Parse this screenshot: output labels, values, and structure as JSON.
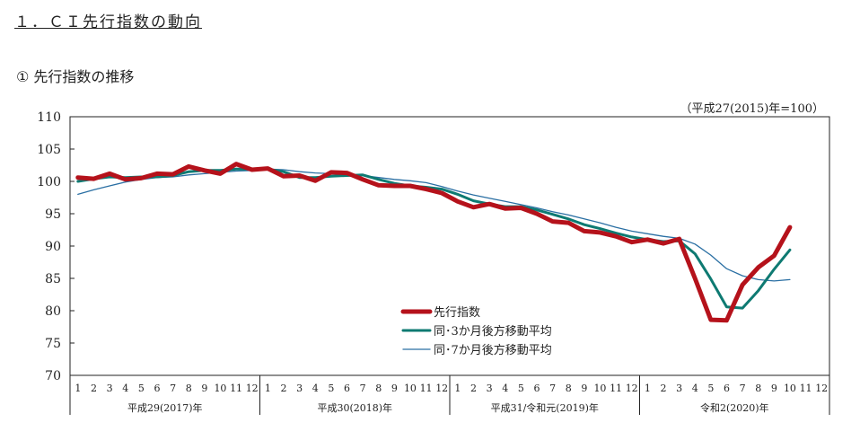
{
  "page": {
    "section_title": "１．ＣＩ先行指数の動向",
    "sub_title": "①  先行指数の推移",
    "base_note": "（平成27(2015)年=100）"
  },
  "chart_data": {
    "type": "line",
    "y_ticks": [
      "110",
      "105",
      "100",
      "95",
      "90",
      "85",
      "80",
      "75",
      "70"
    ],
    "ylim": [
      70,
      110
    ],
    "month_labels": [
      "1",
      "2",
      "3",
      "4",
      "5",
      "6",
      "7",
      "8",
      "9",
      "10",
      "11",
      "12"
    ],
    "year_labels": [
      "平成29(2017)年",
      "平成30(2018)年",
      "平成31/令和元(2019)年",
      "令和2(2020)年"
    ],
    "grid": false,
    "legend_position": "center-bottom",
    "series": [
      {
        "name": "先行指数",
        "color": "#b5121b",
        "values": [
          100.6,
          100.4,
          101.2,
          100.3,
          100.5,
          101.2,
          101.1,
          102.3,
          101.7,
          101.2,
          102.7,
          101.8,
          102.0,
          100.8,
          100.9,
          100.1,
          101.4,
          101.3,
          100.3,
          99.4,
          99.3,
          99.3,
          98.8,
          98.2,
          96.9,
          96.0,
          96.5,
          95.8,
          95.9,
          95.0,
          93.8,
          93.6,
          92.3,
          92.1,
          91.5,
          90.6,
          91.0,
          90.4,
          91.1,
          85.0,
          78.6,
          78.5,
          84.0,
          86.7,
          88.5,
          92.9
        ]
      },
      {
        "name": "同･3か月後方移動平均",
        "color": "#0e7a72",
        "values": [
          100.0,
          100.4,
          100.7,
          100.6,
          100.7,
          100.7,
          100.9,
          101.5,
          101.7,
          101.7,
          101.9,
          101.9,
          101.9,
          101.5,
          100.6,
          100.6,
          100.8,
          100.9,
          101.0,
          100.3,
          99.7,
          99.3,
          99.1,
          98.8,
          98.0,
          97.0,
          96.5,
          96.1,
          96.1,
          95.6,
          94.9,
          94.2,
          93.3,
          92.7,
          92.0,
          91.4,
          91.0,
          90.7,
          90.8,
          88.8,
          84.9,
          80.6,
          80.4,
          83.1,
          86.4,
          89.4
        ]
      },
      {
        "name": "同･7か月後方移動平均",
        "color": "#2a6fa3",
        "values": [
          98.0,
          98.7,
          99.3,
          99.9,
          100.3,
          100.6,
          100.7,
          101.0,
          101.2,
          101.4,
          101.6,
          101.7,
          101.9,
          101.8,
          101.5,
          101.3,
          101.2,
          101.1,
          100.9,
          100.6,
          100.3,
          100.1,
          99.8,
          99.2,
          98.5,
          97.9,
          97.4,
          96.9,
          96.4,
          95.9,
          95.3,
          94.8,
          94.2,
          93.6,
          92.9,
          92.3,
          91.9,
          91.5,
          91.2,
          90.3,
          88.6,
          86.5,
          85.4,
          84.8,
          84.6,
          84.8
        ]
      }
    ]
  }
}
